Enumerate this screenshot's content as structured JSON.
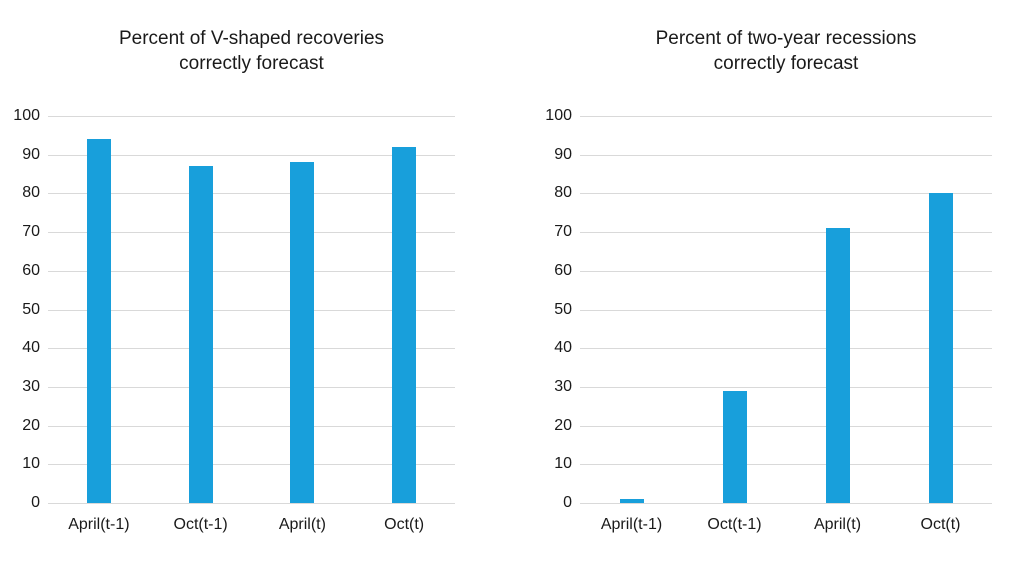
{
  "page": {
    "background_color": "#ffffff",
    "text_color": "#1a1a1a"
  },
  "chart_data": [
    {
      "type": "bar",
      "title": "Percent of V-shaped recoveries correctly forecast",
      "title_lines": [
        "Percent of V-shaped recoveries",
        "correctly forecast"
      ],
      "categories": [
        "April(t-1)",
        "Oct(t-1)",
        "April(t)",
        "Oct(t)"
      ],
      "values": [
        94,
        87,
        88,
        92
      ],
      "xlabel": "",
      "ylabel": "",
      "ylim": [
        0,
        100
      ],
      "yticks": [
        0,
        10,
        20,
        30,
        40,
        50,
        60,
        70,
        80,
        90,
        100
      ],
      "grid": true,
      "legend_position": "none",
      "bar_color": "#189fdb",
      "gridline_color": "#d9d9d9"
    },
    {
      "type": "bar",
      "title": "Percent of two-year recessions correctly forecast",
      "title_lines": [
        "Percent of two-year recessions",
        "correctly forecast"
      ],
      "categories": [
        "April(t-1)",
        "Oct(t-1)",
        "April(t)",
        "Oct(t)"
      ],
      "values": [
        1,
        29,
        71,
        80
      ],
      "xlabel": "",
      "ylabel": "",
      "ylim": [
        0,
        100
      ],
      "yticks": [
        0,
        10,
        20,
        30,
        40,
        50,
        60,
        70,
        80,
        90,
        100
      ],
      "grid": true,
      "legend_position": "none",
      "bar_color": "#189fdb",
      "gridline_color": "#d9d9d9"
    }
  ]
}
